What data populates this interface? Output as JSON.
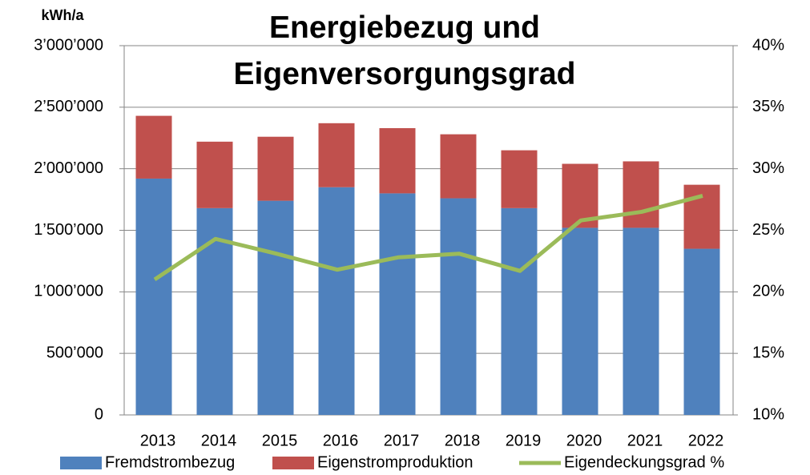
{
  "chart_data": {
    "type": "bar",
    "stacked": true,
    "title": "Energiebezug und Eigenversorgungsgrad",
    "y_label": "kWh/a",
    "categories": [
      "2013",
      "2014",
      "2015",
      "2016",
      "2017",
      "2018",
      "2019",
      "2020",
      "2021",
      "2022"
    ],
    "series": [
      {
        "name": "Fremdstrombezug",
        "type": "bar",
        "color": "#4f81bd",
        "values": [
          1920000,
          1680000,
          1740000,
          1850000,
          1800000,
          1760000,
          1680000,
          1520000,
          1520000,
          1350000
        ]
      },
      {
        "name": "Eigenstromproduktion",
        "type": "bar",
        "color": "#c0504d",
        "values": [
          510000,
          540000,
          520000,
          520000,
          530000,
          520000,
          470000,
          520000,
          540000,
          520000
        ]
      },
      {
        "name": "Eigendeckungsgrad %",
        "type": "line",
        "axis": "y2",
        "color": "#9bbb59",
        "values": [
          21.0,
          24.3,
          23.1,
          21.8,
          22.8,
          23.1,
          21.7,
          25.8,
          26.5,
          27.8
        ]
      }
    ],
    "ylim": [
      0,
      3000000
    ],
    "yticks": [
      0,
      {
        "value": 500000,
        "label": "500’000"
      },
      {
        "value": 1000000,
        "label": "1’000’000"
      },
      {
        "value": 1500000,
        "label": "1’500’000"
      },
      {
        "value": 2000000,
        "label": "2’000’000"
      },
      {
        "value": 2500000,
        "label": "2’500’000"
      },
      {
        "value": 3000000,
        "label": "3’000’000"
      }
    ],
    "y2lim": [
      10,
      40
    ],
    "y2ticks": [
      {
        "value": 10,
        "label": "10%"
      },
      {
        "value": 15,
        "label": "15%"
      },
      {
        "value": 20,
        "label": "20%"
      },
      {
        "value": 25,
        "label": "25%"
      },
      {
        "value": 30,
        "label": "30%"
      },
      {
        "value": 35,
        "label": "35%"
      },
      {
        "value": 40,
        "label": "40%"
      }
    ],
    "grid": true,
    "legend": "bottom"
  }
}
